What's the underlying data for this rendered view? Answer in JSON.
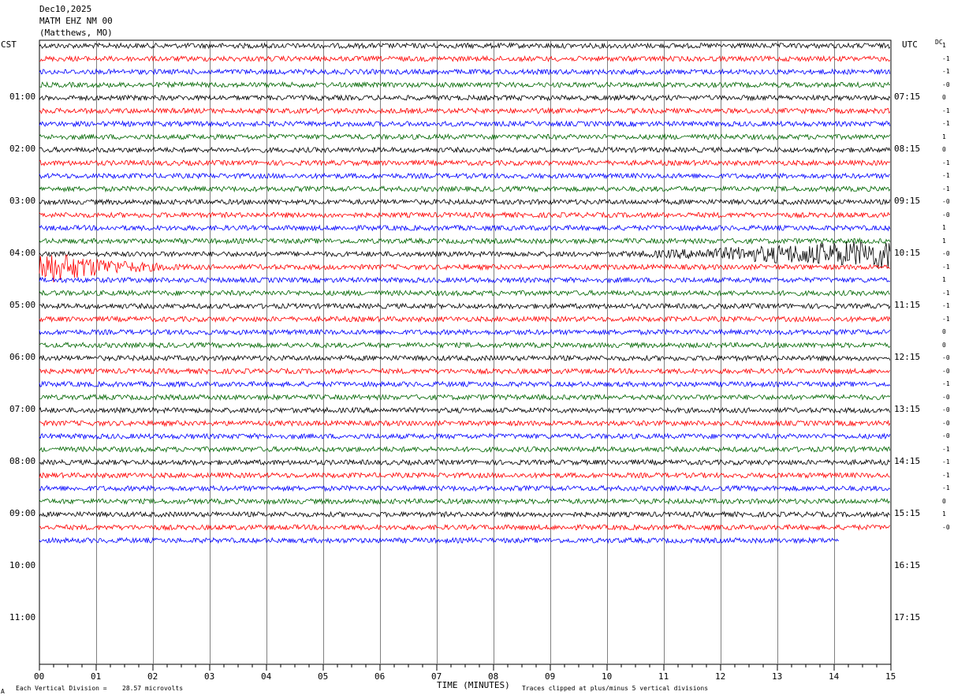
{
  "header": {
    "date": "Dec10,2025",
    "station": "MATM EHZ NM 00",
    "location": "(Matthews, MO)"
  },
  "left_axis_title": "CST",
  "right_axis_title": "UTC",
  "dc_label": "DC",
  "footer": {
    "corner": "A",
    "scale_prefix": "Each Vertical Division =",
    "scale_value": "28.57 microvolts",
    "clip_note": "Traces clipped at plus/minus 5 vertical divisions"
  },
  "colors": {
    "black": "#000000",
    "red": "#ff0000",
    "blue": "#0000ff",
    "green": "#006600",
    "grid": "#808080"
  },
  "chart_data": {
    "type": "line",
    "title": "",
    "xlabel": "TIME (MINUTES)",
    "ylabel": "",
    "xlim": [
      0,
      15
    ],
    "x_ticks": [
      "00",
      "01",
      "02",
      "03",
      "04",
      "05",
      "06",
      "07",
      "08",
      "09",
      "10",
      "11",
      "12",
      "13",
      "14",
      "15"
    ],
    "left_hour_labels": [
      "01:00",
      "02:00",
      "03:00",
      "04:00",
      "05:00",
      "06:00",
      "07:00",
      "08:00",
      "09:00",
      "10:00",
      "11:00"
    ],
    "right_hour_labels": [
      "07:15",
      "08:15",
      "09:15",
      "10:15",
      "11:15",
      "12:15",
      "13:15",
      "14:15",
      "15:15",
      "16:15",
      "17:15"
    ],
    "trace_minutes_per_line": 15,
    "trace_count": 39,
    "last_trace_end_minute": 14.1,
    "trace_colors": [
      "black",
      "red",
      "blue",
      "green"
    ],
    "dc_offsets": [
      "1",
      "-1",
      "-1",
      "-0",
      "0",
      "-1",
      "-1",
      "1",
      "0",
      "-1",
      "-1",
      "-1",
      "-0",
      "-0",
      "1",
      "1",
      "-0",
      "-1",
      "1",
      "-1",
      "-1",
      "-1",
      "0",
      "0",
      "-0",
      "-0",
      "-1",
      "-0",
      "-0",
      "-0",
      "-0",
      "-1",
      "-1",
      "-1",
      "-1",
      "0",
      "1",
      "-0"
    ],
    "events": [
      {
        "trace": 16,
        "start_minute": 10.0,
        "end_minute": 15,
        "description_visible": false
      },
      {
        "trace": 17,
        "start_minute": 0,
        "end_minute": 3.0,
        "description_visible": false
      }
    ]
  }
}
